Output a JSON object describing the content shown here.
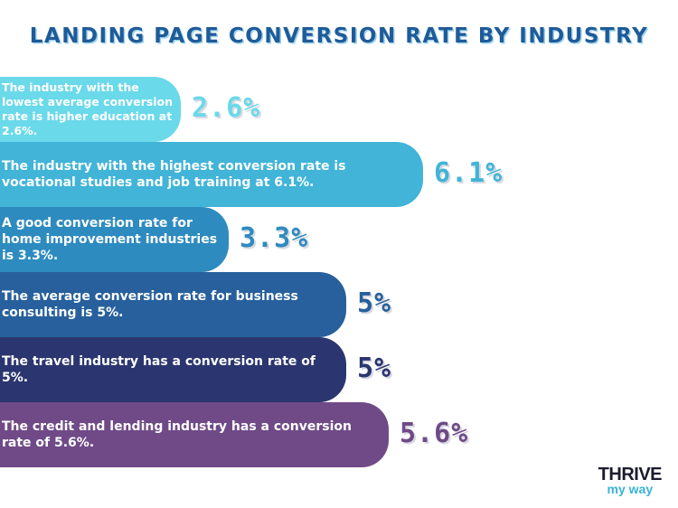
{
  "title": "LANDING PAGE CONVERSION RATE BY INDUSTRY",
  "chart_data": {
    "type": "bar",
    "orientation": "horizontal",
    "title": "LANDING PAGE CONVERSION RATE BY INDUSTRY",
    "value_labels": [
      "2.6%",
      "6.1%",
      "3.3%",
      "5%",
      "5%",
      "5.6%"
    ],
    "values": [
      2.6,
      6.1,
      3.3,
      5,
      5,
      5.6
    ],
    "descriptions": [
      "The industry with the lowest average conversion rate is higher education at 2.6%.",
      "The industry with the highest conversion rate is vocational studies and job training at 6.1%.",
      "A good conversion rate for home improvement industries is 3.3%.",
      "The average conversion rate for business consulting is 5%.",
      "The travel industry has a conversion rate of 5%.",
      "The credit and lending industry has a conversion rate of 5.6%."
    ],
    "colors": [
      "#6ad9ea",
      "#41b4d8",
      "#2d8bbf",
      "#27609c",
      "#2b3670",
      "#6f4a87"
    ],
    "label_colors": [
      "#6ad9ea",
      "#41b4d8",
      "#2d8bbf",
      "#27609c",
      "#2b3670",
      "#6f4a87"
    ]
  },
  "logo": {
    "top": "THRIVE",
    "bottom": "my way"
  }
}
